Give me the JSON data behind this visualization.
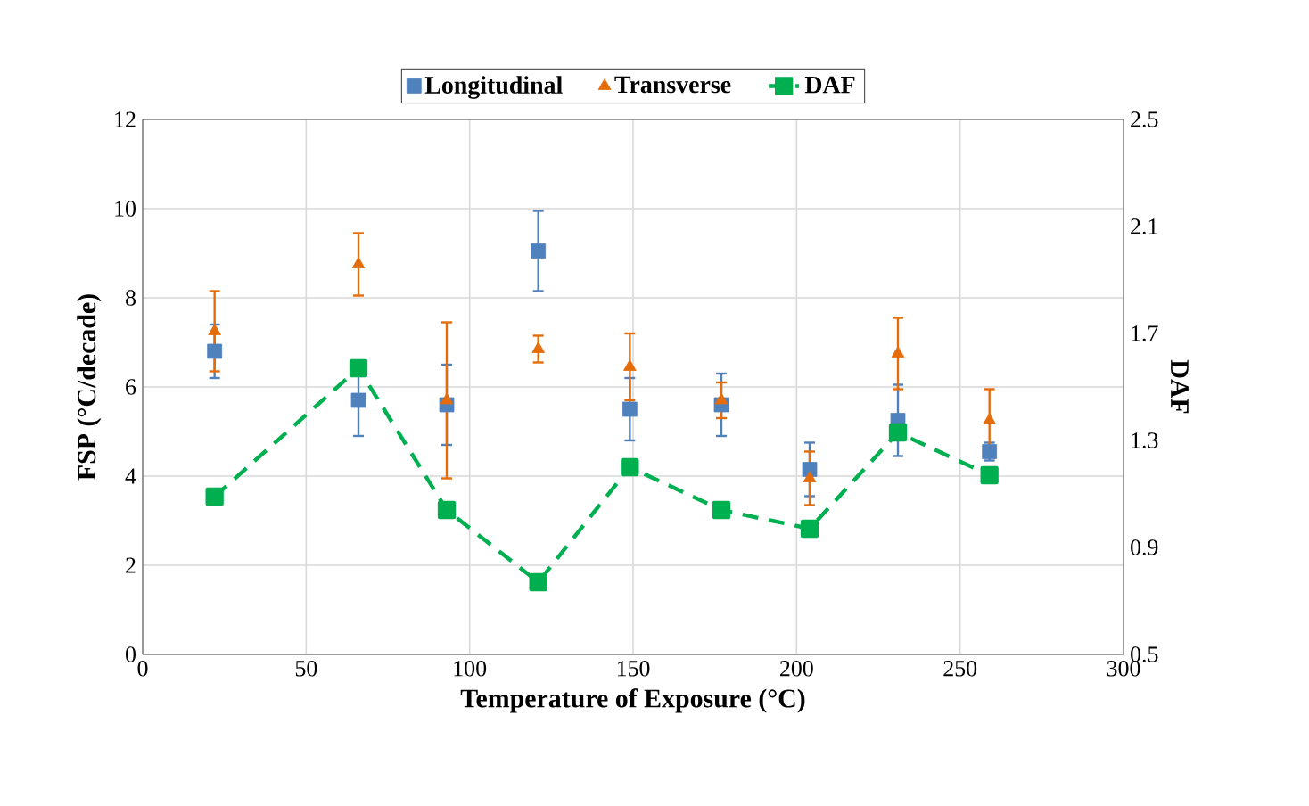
{
  "chart_data": {
    "type": "scatter",
    "xlabel": "Temperature  of Exposure (°C)",
    "ylabel": "FSP (°C/decade)",
    "y2label": "DAF",
    "x": [
      22,
      66,
      93,
      121,
      149,
      177,
      204,
      231,
      259
    ],
    "series": [
      {
        "name": "Longitudinal",
        "color": "#4f81bd",
        "marker": "square",
        "values": [
          6.8,
          5.7,
          5.6,
          9.05,
          5.5,
          5.6,
          4.15,
          5.25,
          4.55
        ],
        "errors": [
          0.6,
          0.8,
          0.9,
          0.9,
          0.7,
          0.7,
          0.6,
          0.8,
          0.2
        ]
      },
      {
        "name": "Transverse",
        "color": "#e46c0a",
        "marker": "triangle",
        "values": [
          7.25,
          8.75,
          5.7,
          6.85,
          6.45,
          5.7,
          3.95,
          6.75,
          5.25
        ],
        "errors": [
          0.9,
          0.7,
          1.75,
          0.3,
          0.75,
          0.4,
          0.6,
          0.8,
          0.7
        ]
      },
      {
        "name": "DAF",
        "type": "line",
        "axis": "y2",
        "color": "#00b050",
        "marker": "square",
        "line_style": "dashed",
        "values": [
          1.09,
          1.57,
          1.04,
          0.77,
          1.2,
          1.04,
          0.97,
          1.33,
          1.17
        ]
      }
    ],
    "xlim": [
      0,
      300
    ],
    "xticks": [
      0,
      50,
      100,
      150,
      200,
      250,
      300
    ],
    "ylim": [
      0,
      12
    ],
    "yticks": [
      0,
      2,
      4,
      6,
      8,
      10,
      12
    ],
    "y2lim": [
      0.5,
      2.5
    ],
    "y2ticks": [
      0.5,
      0.9,
      1.3,
      1.7,
      2.1,
      2.5
    ],
    "grid": true,
    "legend": "top"
  }
}
